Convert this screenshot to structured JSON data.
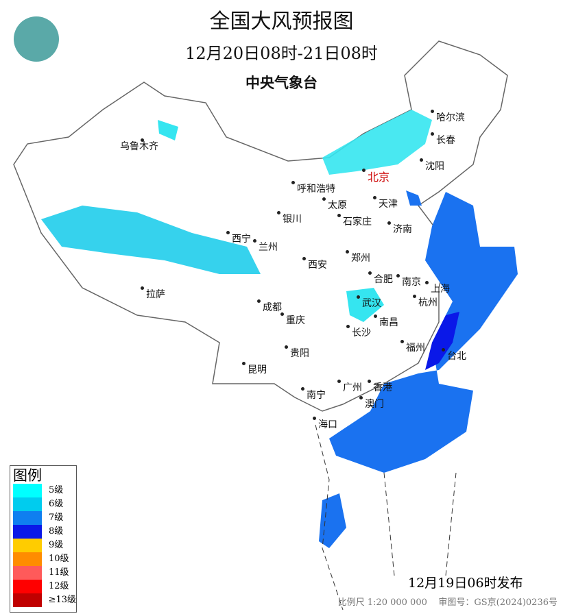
{
  "title": "全国大风预报图",
  "period": "12月20日08时-21日08时",
  "issuer": "中央气象台",
  "legend": {
    "title": "图例",
    "items": [
      {
        "label": "5级",
        "color": "#00ffff"
      },
      {
        "label": "6级",
        "color": "#00ccee"
      },
      {
        "label": "7级",
        "color": "#0f7ff0"
      },
      {
        "label": "8级",
        "color": "#0a18e8"
      },
      {
        "label": "9级",
        "color": "#ffcc00"
      },
      {
        "label": "10级",
        "color": "#ff8c00"
      },
      {
        "label": "11级",
        "color": "#ff5a5a"
      },
      {
        "label": "12级",
        "color": "#ff0000"
      },
      {
        "label": "≥13级",
        "color": "#c00000"
      }
    ]
  },
  "cities": [
    "乌鲁木齐",
    "哈尔滨",
    "长春",
    "沈阳",
    "北京",
    "呼和浩特",
    "天津",
    "银川",
    "太原",
    "石家庄",
    "济南",
    "西宁",
    "兰州",
    "西安",
    "郑州",
    "合肥",
    "南京",
    "上海",
    "拉萨",
    "成都",
    "武汉",
    "杭州",
    "重庆",
    "南昌",
    "长沙",
    "福州",
    "台北",
    "贵阳",
    "昆明",
    "广州",
    "香港",
    "澳门",
    "南宁",
    "海口"
  ],
  "capital_color": "#cc0000",
  "publish_time": "12月19日06时发布",
  "scale": "比例尺 1:20 000 000",
  "approval": "审图号：GS京(2024)0236号"
}
